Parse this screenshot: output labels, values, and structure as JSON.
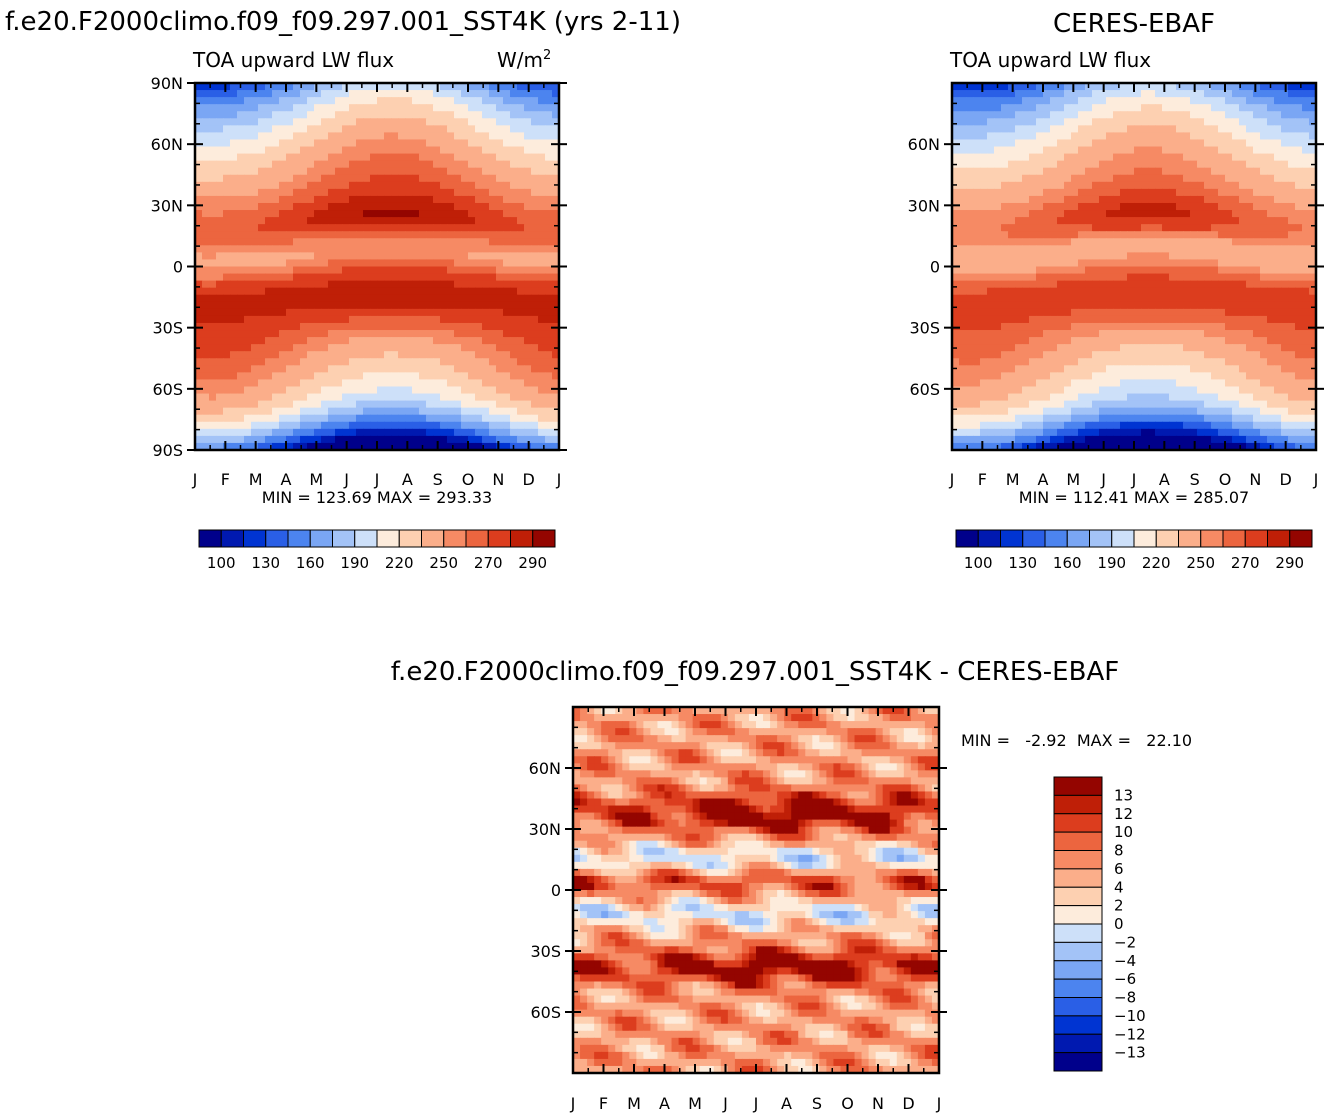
{
  "palette": [
    "#00008b",
    "#0019b0",
    "#0034d2",
    "#2a5fe6",
    "#4c84ef",
    "#7aa6f4",
    "#a3c3f7",
    "#cde0f9",
    "#fdecdc",
    "#fdd0b1",
    "#fbae8a",
    "#f68a64",
    "#ec653f",
    "#dc3d1e",
    "#bf1f07",
    "#940500"
  ],
  "chart_data": [
    {
      "type": "heatmap",
      "title": "f.e20.F2000climo.f09_f09.297.001_SST4K (yrs 2-11)",
      "subtitle": "TOA upward LW flux",
      "units_base": "W/m",
      "units_sup": "2",
      "x_ticks": [
        "J",
        "F",
        "M",
        "A",
        "M",
        "J",
        "J",
        "A",
        "S",
        "O",
        "N",
        "D",
        "J"
      ],
      "y_ticks": [
        "90N",
        "60N",
        "30N",
        "0",
        "30S",
        "60S",
        "90S"
      ],
      "stats": "MIN = 123.69  MAX = 293.33",
      "min": 123.69,
      "max": 293.33,
      "colorbar_levels": [
        100,
        130,
        160,
        190,
        220,
        250,
        270,
        290
      ],
      "colorbar_labels": [
        "100",
        "130",
        "160",
        "190",
        "220",
        "250",
        "270",
        "290"
      ]
    },
    {
      "type": "heatmap",
      "title": "CERES-EBAF",
      "subtitle": "TOA upward LW flux",
      "x_ticks": [
        "J",
        "F",
        "M",
        "A",
        "M",
        "J",
        "J",
        "A",
        "S",
        "O",
        "N",
        "D",
        "J"
      ],
      "y_ticks": [
        "60N",
        "30N",
        "0",
        "30S",
        "60S"
      ],
      "stats": "MIN = 112.41  MAX = 285.07",
      "min": 112.41,
      "max": 285.07,
      "colorbar_levels": [
        100,
        130,
        160,
        190,
        220,
        250,
        270,
        290
      ],
      "colorbar_labels": [
        "100",
        "130",
        "160",
        "190",
        "220",
        "250",
        "270",
        "290"
      ]
    },
    {
      "type": "heatmap",
      "title": "f.e20.F2000climo.f09_f09.297.001_SST4K - CERES-EBAF",
      "x_ticks": [
        "J",
        "F",
        "M",
        "A",
        "M",
        "J",
        "J",
        "A",
        "S",
        "O",
        "N",
        "D",
        "J"
      ],
      "y_ticks": [
        "60N",
        "30N",
        "0",
        "30S",
        "60S"
      ],
      "stats": "MIN =   -2.92  MAX =   22.10",
      "min": -2.92,
      "max": 22.1,
      "colorbar_labels": [
        "13",
        "12",
        "10",
        "8",
        "6",
        "4",
        "2",
        "0",
        "−2",
        "−4",
        "−6",
        "−8",
        "−10",
        "−12",
        "−13"
      ]
    }
  ]
}
